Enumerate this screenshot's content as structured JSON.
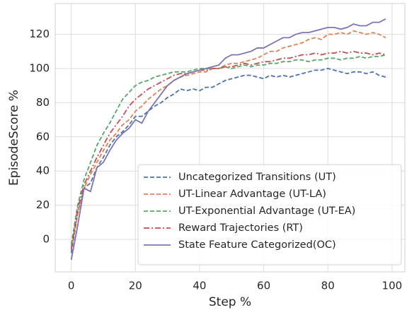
{
  "chart_data": {
    "type": "line",
    "x_label": "Step %",
    "y_label": "EpisodeScore %",
    "x": [
      0,
      2,
      4,
      6,
      8,
      10,
      12,
      14,
      16,
      18,
      20,
      22,
      24,
      26,
      28,
      30,
      32,
      34,
      36,
      38,
      40,
      42,
      44,
      46,
      48,
      50,
      52,
      54,
      56,
      58,
      60,
      62,
      64,
      66,
      68,
      70,
      72,
      74,
      76,
      78,
      80,
      82,
      84,
      86,
      88,
      90,
      92,
      94,
      96,
      98
    ],
    "series": [
      {
        "name": "Uncategorized Transitions (UT)",
        "color": "#4c72b0",
        "dash": "dashed",
        "values": [
          -8,
          15,
          30,
          33,
          42,
          48,
          55,
          60,
          63,
          67,
          72,
          72,
          75,
          78,
          80,
          83,
          85,
          88,
          87,
          88,
          87,
          89,
          89,
          91,
          93,
          94,
          95,
          96,
          96,
          95,
          94,
          96,
          95,
          96,
          95,
          96,
          97,
          98,
          99,
          99,
          100,
          99,
          98,
          97,
          98,
          98,
          97,
          98,
          96,
          95
        ]
      },
      {
        "name": "UT-Linear Advantage (UT-LA)",
        "color": "#dd8452",
        "dash": "dashed",
        "values": [
          -5,
          15,
          30,
          38,
          45,
          52,
          58,
          62,
          67,
          70,
          75,
          78,
          82,
          85,
          88,
          90,
          93,
          95,
          96,
          97,
          98,
          98,
          100,
          100,
          102,
          103,
          103,
          104,
          105,
          106,
          108,
          110,
          110,
          112,
          113,
          114,
          115,
          117,
          118,
          117,
          120,
          120,
          121,
          120,
          122,
          121,
          120,
          121,
          120,
          118
        ]
      },
      {
        "name": "UT-Exponential Advantage (UT-EA)",
        "color": "#55a868",
        "dash": "dashed",
        "values": [
          -3,
          20,
          35,
          45,
          55,
          62,
          68,
          75,
          82,
          86,
          90,
          92,
          93,
          95,
          96,
          97,
          98,
          98,
          98,
          99,
          100,
          100,
          100,
          100,
          101,
          100,
          101,
          102,
          101,
          102,
          102,
          103,
          103,
          104,
          104,
          105,
          105,
          104,
          105,
          105,
          106,
          106,
          105,
          106,
          106,
          107,
          106,
          107,
          107,
          108
        ]
      },
      {
        "name": "Reward Trajectories (RT)",
        "color": "#c44e52",
        "dash": "dashdot",
        "values": [
          -6,
          18,
          32,
          40,
          48,
          55,
          62,
          67,
          72,
          78,
          82,
          85,
          88,
          90,
          92,
          94,
          96,
          97,
          97,
          98,
          99,
          99,
          100,
          100,
          101,
          101,
          102,
          103,
          102,
          103,
          104,
          104,
          105,
          106,
          106,
          107,
          108,
          108,
          109,
          108,
          109,
          109,
          110,
          109,
          110,
          109,
          109,
          108,
          109,
          108
        ]
      },
      {
        "name": "State Feature Categorized(OC)",
        "color": "#8172b3",
        "dash": "solid",
        "values": [
          -12,
          8,
          30,
          28,
          42,
          45,
          52,
          58,
          62,
          65,
          70,
          68,
          75,
          80,
          85,
          90,
          93,
          95,
          97,
          98,
          99,
          100,
          101,
          102,
          106,
          108,
          108,
          109,
          110,
          112,
          112,
          114,
          116,
          118,
          118,
          120,
          121,
          121,
          122,
          123,
          124,
          124,
          123,
          124,
          126,
          125,
          125,
          127,
          127,
          129
        ]
      }
    ],
    "xlim": [
      -5,
      104
    ],
    "ylim": [
      -19,
      138
    ],
    "xticks": [
      0,
      20,
      40,
      60,
      80,
      100
    ],
    "yticks": [
      0,
      20,
      40,
      60,
      80,
      100,
      120
    ],
    "grid": true,
    "legend": "lower right"
  }
}
